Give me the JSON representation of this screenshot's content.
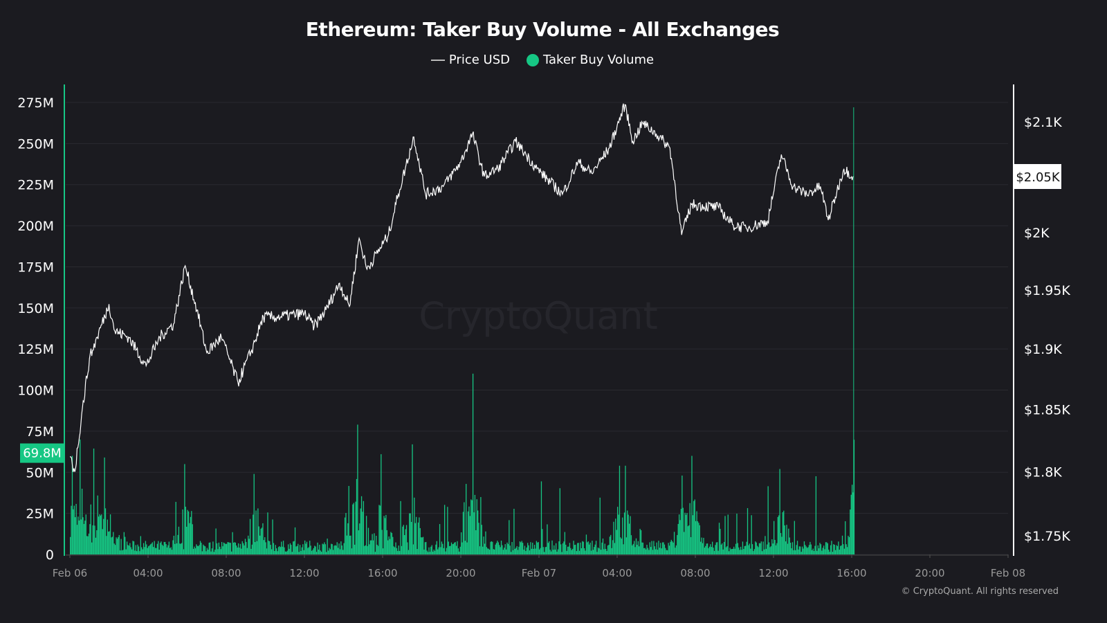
{
  "chart_data": {
    "type": "line+bar",
    "title": "Ethereum: Taker Buy Volume - All Exchanges",
    "watermark": "CryptoQuant",
    "footer": "© CryptoQuant. All rights reserved",
    "legend": [
      {
        "label": "Price USD",
        "color": "#ffffff"
      },
      {
        "label": "Taker Buy Volume",
        "color": "#16c784"
      }
    ],
    "x_ticks": [
      "Feb 06",
      "04:00",
      "08:00",
      "12:00",
      "16:00",
      "20:00",
      "Feb 07",
      "04:00",
      "08:00",
      "12:00",
      "16:00",
      "20:00",
      "Feb 08"
    ],
    "x_range_hours_from_feb06": [
      0,
      48
    ],
    "left_axis": {
      "ticks": [
        "0",
        "25M",
        "50M",
        "75M",
        "100M",
        "125M",
        "150M",
        "175M",
        "200M",
        "225M",
        "250M",
        "275M"
      ],
      "values": [
        0,
        25,
        50,
        75,
        100,
        125,
        150,
        175,
        200,
        225,
        250,
        275
      ],
      "unit": "M",
      "range": [
        0,
        275
      ],
      "hover_label": "69.8M"
    },
    "right_axis": {
      "scale": "log",
      "ticks": [
        "$1.75K",
        "$1.8K",
        "$1.85K",
        "$1.9K",
        "$1.95K",
        "$2K",
        "$2.1K"
      ],
      "values": [
        1750,
        1800,
        1850,
        1900,
        1950,
        2000,
        2100
      ],
      "hover_label": "$2.05K"
    },
    "price_series": {
      "name": "Price USD",
      "points_hour_price": [
        [
          0,
          1812
        ],
        [
          0.25,
          1800
        ],
        [
          0.6,
          1846
        ],
        [
          1,
          1892
        ],
        [
          1.4,
          1910
        ],
        [
          2,
          1938
        ],
        [
          2.3,
          1915
        ],
        [
          3,
          1910
        ],
        [
          3.9,
          1886
        ],
        [
          4.6,
          1910
        ],
        [
          5.3,
          1921
        ],
        [
          5.9,
          1971
        ],
        [
          6.5,
          1933
        ],
        [
          7,
          1897
        ],
        [
          7.75,
          1910
        ],
        [
          8.6,
          1872
        ],
        [
          9.3,
          1899
        ],
        [
          9.9,
          1927
        ],
        [
          10.6,
          1927
        ],
        [
          12,
          1930
        ],
        [
          12.5,
          1919
        ],
        [
          13.1,
          1933
        ],
        [
          13.8,
          1956
        ],
        [
          14.3,
          1936
        ],
        [
          14.8,
          1995
        ],
        [
          15.2,
          1968
        ],
        [
          16.3,
          1998
        ],
        [
          16.8,
          2034
        ],
        [
          17.6,
          2086
        ],
        [
          18.2,
          2034
        ],
        [
          19.1,
          2041
        ],
        [
          20,
          2063
        ],
        [
          20.6,
          2089
        ],
        [
          21.2,
          2050
        ],
        [
          21.9,
          2057
        ],
        [
          22.8,
          2082
        ],
        [
          23.9,
          2057
        ],
        [
          25.2,
          2034
        ],
        [
          26,
          2063
        ],
        [
          26.7,
          2053
        ],
        [
          27.6,
          2076
        ],
        [
          28.4,
          2116
        ],
        [
          28.8,
          2082
        ],
        [
          29.3,
          2099
        ],
        [
          30,
          2089
        ],
        [
          30.7,
          2076
        ],
        [
          31.3,
          1998
        ],
        [
          31.8,
          2025
        ],
        [
          33.2,
          2022
        ],
        [
          33.9,
          2007
        ],
        [
          34.6,
          2004
        ],
        [
          35.7,
          2010
        ],
        [
          36.4,
          2070
        ],
        [
          37,
          2041
        ],
        [
          37.7,
          2034
        ],
        [
          38.4,
          2041
        ],
        [
          38.8,
          2011
        ],
        [
          39.6,
          2057
        ],
        [
          40.1,
          2050
        ]
      ]
    },
    "volume_series": {
      "name": "Taker Buy Volume",
      "unit": "M",
      "typical_level": 5,
      "spikes_hour_value": [
        [
          0.1,
          60
        ],
        [
          0.5,
          70
        ],
        [
          0.6,
          40
        ],
        [
          1.75,
          59
        ],
        [
          5.85,
          55
        ],
        [
          9.4,
          49
        ],
        [
          14.7,
          79
        ],
        [
          15.9,
          61
        ],
        [
          17.5,
          67
        ],
        [
          20.6,
          110
        ],
        [
          28.1,
          54
        ],
        [
          28.4,
          54
        ],
        [
          31.3,
          48
        ],
        [
          31.8,
          60
        ],
        [
          36.3,
          52
        ],
        [
          40.1,
          69.8
        ]
      ]
    },
    "hover_hour": 40.1,
    "colors": {
      "background": "#1b1b20",
      "volume": "#16c784",
      "price": "#ffffff",
      "grid": "#2a2a30"
    }
  }
}
